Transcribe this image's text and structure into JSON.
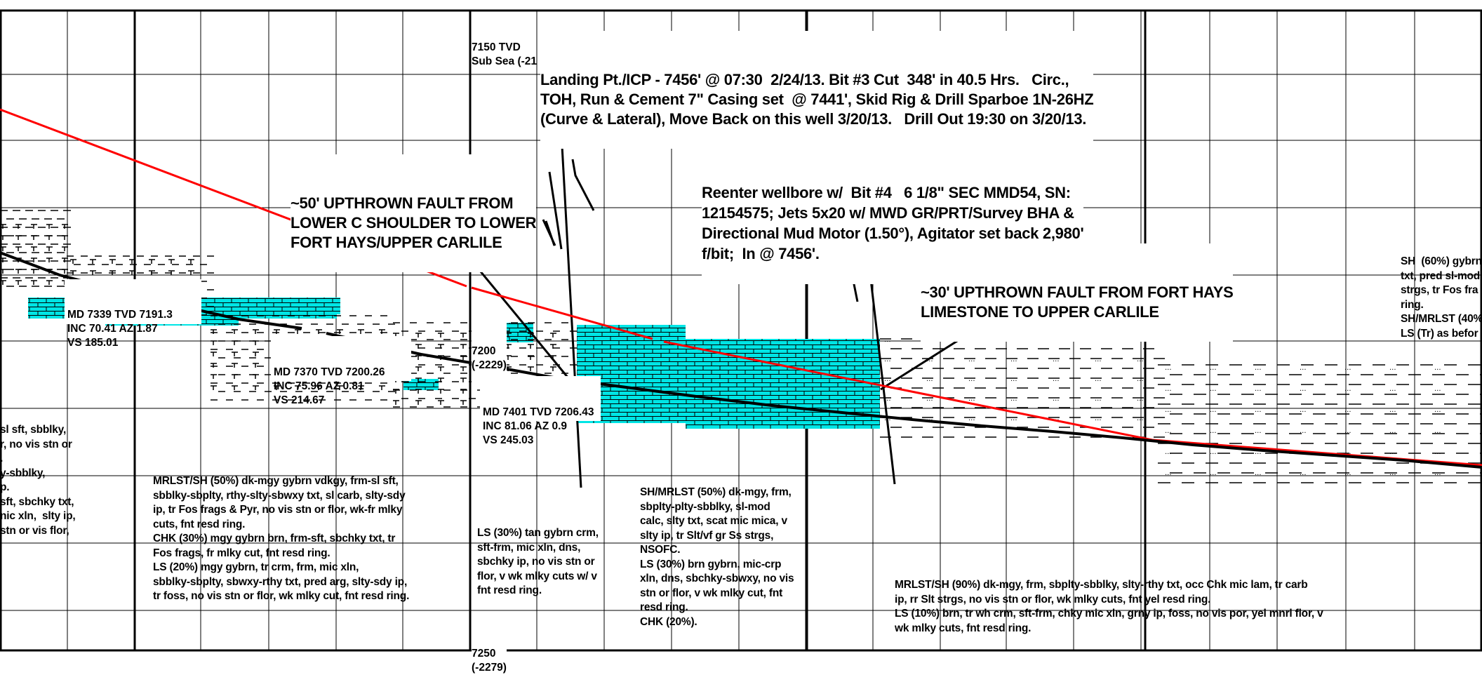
{
  "depth_labels": {
    "top": [
      "7150 TVD",
      "Sub Sea (-21"
    ],
    "mid": [
      "7200",
      "(-2229)"
    ],
    "bottom": [
      "7250",
      "(-2279)"
    ]
  },
  "survey_boxes": [
    {
      "md": "MD 7339 TVD 7191.3",
      "inc": "INC 70.41 AZ 1.87",
      "vs": "VS 185.01"
    },
    {
      "md": "MD 7370 TVD 7200.26",
      "inc": "INC 75.96 AZ 0.81",
      "vs": "VS 214.67"
    },
    {
      "md": "MD 7401 TVD 7206.43",
      "inc": "INC 81.06 AZ 0.9",
      "vs": "VS 245.03"
    }
  ],
  "annotations": {
    "landing": [
      "Landing Pt./ICP - 7456' @ 07:30  2/24/13. Bit #3 Cut  348' in 40.5 Hrs.   Circ.,",
      "TOH, Run & Cement 7\" Casing set  @ 7441', Skid Rig & Drill Sparboe 1N-26HZ",
      "(Curve & Lateral), Move Back on this well 3/20/13.   Drill Out 19:30 on 3/20/13."
    ],
    "reenter": [
      "Reenter wellbore w/  Bit #4   6 1/8\" SEC MMD54, SN:",
      "12154575; Jets 5x20 w/ MWD GR/PRT/Survey BHA &",
      "Directional Mud Motor (1.50°), Agitator set back 2,980'",
      "f/bit;  In @ 7456'."
    ],
    "fault1": [
      "~50' UPTHROWN FAULT FROM",
      "LOWER C SHOULDER TO LOWER",
      "FORT HAYS/UPPER CARLILE"
    ],
    "fault2": [
      "~30' UPTHROWN FAULT FROM FORT HAYS",
      "LIMESTONE TO UPPER CARLILE"
    ]
  },
  "lithology": {
    "left_partial": [
      "sl sft, sbblky,",
      "r, no vis stn or",
      ".",
      "y-sbblky,",
      "p.",
      "sft, sbchky txt,",
      "",
      "nic xln,  slty ip,",
      "stn or vis flor,"
    ],
    "mrlst_a": [
      "MRLST/SH (50%) dk-mgy gybrn vdkgy, frm-sl sft,",
      "sbblky-sbplty, rthy-slty-sbwxy txt, sl carb, slty-sdy",
      "ip, tr Fos frags & Pyr, no vis stn or flor, wk-fr mlky",
      "cuts, fnt resd ring.",
      "CHK (30%) mgy gybrn brn, frm-sft, sbchky txt, tr",
      "Fos frags, fr mlky cut, fnt resd ring.",
      "LS (20%) mgy gybrn, tr crm, frm, mic xln,",
      "sbblky-sbplty, sbwxy-rthy txt, pred arg, slty-sdy ip,",
      "tr foss, no vis stn or flor, wk mlky cut, fnt resd ring."
    ],
    "ls_tan": [
      "LS (30%) tan gybrn crm,",
      "sft-frm, mic xln, dns,",
      "sbchky ip, no vis stn or",
      "flor, v wk mlky cuts w/ v",
      "fnt resd ring."
    ],
    "sh_mrlst": [
      "SH/MRLST (50%) dk-mgy, frm,",
      "sbplty-plty-sbblky, sl-mod",
      "calc, slty txt, scat mic mica, v",
      "slty ip, tr Slt/vf gr Ss strgs,",
      "NSOFC.",
      "LS (30%) brn gybrn, mic-crp",
      "xln, dns, sbchky-sbwxy, no vis",
      "stn or flor, v wk mlky cut, fnt",
      "resd ring.",
      "CHK (20%)."
    ],
    "mrlst_b": [
      "MRLST/SH (90%) dk-mgy, frm, sbplty-sbblky, slty-rthy txt, occ Chk mic lam, tr carb",
      "ip, rr Slt strgs, no vis stn or flor, wk mlky cuts, fnt yel resd ring.",
      "LS (10%) brn, tr wh crm, sft-frm, chky mic xln, grny ip, foss, no vis por, yel mnrl flor, v",
      "wk mlky cuts, fnt resd ring."
    ],
    "right_partial": [
      "SH  (60%) gybrn",
      "txt, pred sl-mod",
      "strgs, tr Fos fra",
      "ring.",
      "SH/MRLST (40%",
      "LS (Tr) as befor"
    ]
  },
  "colors": {
    "frame": "#000000",
    "grid": "#000000",
    "plan_line": "#ff0000",
    "wellbore": "#000000",
    "limestone_fill": "#00e5e5"
  }
}
